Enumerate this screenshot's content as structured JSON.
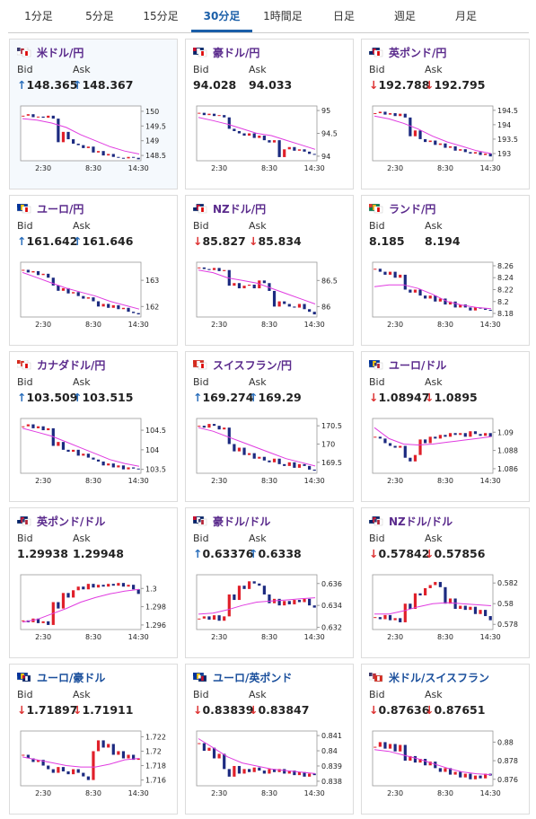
{
  "tabs": [
    "1分足",
    "5分足",
    "15分足",
    "30分足",
    "1時間足",
    "日足",
    "週足",
    "月足"
  ],
  "active_tab": 3,
  "labels": {
    "bid": "Bid",
    "ask": "Ask"
  },
  "x_labels": [
    "2:30",
    "8:30",
    "14:30"
  ],
  "cards": [
    {
      "name": "米ドル/円",
      "flags": [
        "us",
        "jp"
      ],
      "bid": 148.365,
      "ask": 148.367,
      "trend": "up",
      "ylim": [
        148.32,
        150.18
      ],
      "yticks": [
        148.5,
        149,
        149.5,
        150
      ],
      "close": [
        149.85,
        149.9,
        149.8,
        149.82,
        149.78,
        149.85,
        149.75,
        148.95,
        149.3,
        149.05,
        148.9,
        148.85,
        148.75,
        148.8,
        148.6,
        148.65,
        148.5,
        148.55,
        148.45,
        148.42,
        148.4,
        148.45,
        148.42,
        148.37
      ],
      "ma": [
        149.75,
        149.7,
        149.6,
        149.45,
        149.2,
        149.0,
        148.8,
        148.65,
        148.55
      ]
    },
    {
      "name": "豪ドル/円",
      "flags": [
        "au",
        "jp"
      ],
      "bid": 94.028,
      "ask": 94.033,
      "ylim": [
        93.9,
        95.1
      ],
      "yticks": [
        94,
        94.5,
        95
      ],
      "close": [
        94.95,
        94.9,
        94.93,
        94.88,
        94.9,
        94.85,
        94.6,
        94.55,
        94.5,
        94.45,
        94.5,
        94.4,
        94.45,
        94.35,
        94.3,
        94.35,
        93.98,
        94.15,
        94.2,
        94.12,
        94.15,
        94.1,
        94.05,
        94.03
      ],
      "ma": [
        94.85,
        94.78,
        94.7,
        94.6,
        94.5,
        94.45,
        94.35,
        94.25,
        94.15
      ]
    },
    {
      "name": "英ポンド/円",
      "flags": [
        "uk",
        "jp"
      ],
      "bid": 192.788,
      "ask": 192.795,
      "trend": "down",
      "ylim": [
        192.75,
        194.65
      ],
      "yticks": [
        193,
        193.5,
        194,
        194.5
      ],
      "close": [
        194.4,
        194.45,
        194.35,
        194.4,
        194.3,
        194.38,
        194.25,
        193.6,
        193.8,
        193.5,
        193.4,
        193.45,
        193.3,
        193.35,
        193.2,
        193.25,
        193.1,
        193.15,
        193.05,
        193.0,
        193.05,
        192.95,
        193.0,
        192.9
      ],
      "ma": [
        194.3,
        194.2,
        194.05,
        193.85,
        193.6,
        193.4,
        193.25,
        193.1,
        193.0
      ]
    },
    {
      "name": "ユーロ/円",
      "flags": [
        "eu",
        "jp"
      ],
      "bid": 161.642,
      "ask": 161.646,
      "trend": "up",
      "ylim": [
        161.6,
        163.69
      ],
      "yticks": [
        162,
        163
      ],
      "close": [
        163.4,
        163.3,
        163.35,
        163.2,
        163.25,
        163.1,
        162.8,
        162.6,
        162.7,
        162.5,
        162.55,
        162.4,
        162.3,
        162.35,
        162.2,
        162.0,
        162.1,
        161.95,
        162.05,
        161.9,
        161.95,
        161.8,
        161.75,
        161.7
      ],
      "ma": [
        163.3,
        163.1,
        162.9,
        162.7,
        162.55,
        162.4,
        162.2,
        162.05,
        161.9
      ]
    },
    {
      "name": "NZドル/円",
      "flags": [
        "nz",
        "jp"
      ],
      "bid": 85.827,
      "ask": 85.834,
      "trend": "down",
      "ylim": [
        85.8,
        86.85
      ],
      "yticks": [
        86,
        86.5
      ],
      "close": [
        86.75,
        86.72,
        86.7,
        86.74,
        86.68,
        86.7,
        86.4,
        86.45,
        86.35,
        86.4,
        86.42,
        86.35,
        86.5,
        86.45,
        86.3,
        86.0,
        86.1,
        86.05,
        86.0,
        85.98,
        86.05,
        85.95,
        85.9,
        85.85
      ],
      "ma": [
        86.7,
        86.65,
        86.55,
        86.5,
        86.45,
        86.35,
        86.25,
        86.15,
        86.05
      ]
    },
    {
      "name": "ランド/円",
      "flags": [
        "za",
        "jp"
      ],
      "bid": 8.185,
      "ask": 8.194,
      "ylim": [
        8.174,
        8.266
      ],
      "yticks": [
        8.18,
        8.2,
        8.22,
        8.24,
        8.26
      ],
      "close": [
        8.255,
        8.25,
        8.245,
        8.25,
        8.24,
        8.245,
        8.22,
        8.215,
        8.22,
        8.21,
        8.205,
        8.21,
        8.2,
        8.205,
        8.195,
        8.2,
        8.19,
        8.195,
        8.19,
        8.185,
        8.19,
        8.188,
        8.186,
        8.185
      ],
      "ma": [
        8.225,
        8.228,
        8.228,
        8.222,
        8.212,
        8.2,
        8.194,
        8.19,
        8.188
      ]
    },
    {
      "name": "カナダドル/円",
      "flags": [
        "ca",
        "jp"
      ],
      "bid": 103.509,
      "ask": 103.515,
      "trend": "up",
      "ylim": [
        103.4,
        104.8
      ],
      "yticks": [
        103.5,
        104,
        104.5
      ],
      "close": [
        104.6,
        104.65,
        104.55,
        104.6,
        104.5,
        104.55,
        104.1,
        104.2,
        104.0,
        103.95,
        104.0,
        103.85,
        103.9,
        103.8,
        103.75,
        103.7,
        103.6,
        103.65,
        103.55,
        103.6,
        103.5,
        103.55,
        103.52,
        103.51
      ],
      "ma": [
        104.55,
        104.45,
        104.35,
        104.2,
        104.05,
        103.9,
        103.75,
        103.65,
        103.58
      ]
    },
    {
      "name": "スイスフラン/円",
      "flags": [
        "ch",
        "jp"
      ],
      "bid": 169.274,
      "ask": 169.29,
      "trend": "up",
      "ylim": [
        169.2,
        170.7
      ],
      "yticks": [
        169.5,
        170,
        170.5
      ],
      "close": [
        170.5,
        170.45,
        170.55,
        170.5,
        170.4,
        170.45,
        170.0,
        169.8,
        169.9,
        169.7,
        169.75,
        169.6,
        169.65,
        169.55,
        169.5,
        169.6,
        169.45,
        169.4,
        169.5,
        169.35,
        169.45,
        169.4,
        169.3,
        169.27
      ],
      "ma": [
        170.45,
        170.35,
        170.2,
        170.05,
        169.9,
        169.75,
        169.6,
        169.5,
        169.4
      ]
    },
    {
      "name": "ユーロ/ドル",
      "flags": [
        "eu",
        "us"
      ],
      "bid": 1.08947,
      "ask": 1.0895,
      "trend": "down",
      "ylim": [
        1.0855,
        1.0915
      ],
      "yticks": [
        1.086,
        1.088,
        1.09
      ],
      "close": [
        1.0895,
        1.0893,
        1.0888,
        1.0885,
        1.0883,
        1.0885,
        1.0872,
        1.0868,
        1.0875,
        1.0892,
        1.0888,
        1.0895,
        1.0893,
        1.0897,
        1.0895,
        1.0899,
        1.0897,
        1.0899,
        1.0895,
        1.0901,
        1.0898,
        1.0896,
        1.0899,
        1.0895
      ],
      "ma": [
        1.0905,
        1.0893,
        1.0887,
        1.0886,
        1.0887,
        1.0889,
        1.0891,
        1.0893,
        1.0895
      ]
    },
    {
      "name": "英ポンド/ドル",
      "flags": [
        "uk",
        "us"
      ],
      "bid": 1.29938,
      "ask": 1.29948,
      "ylim": [
        1.2955,
        1.3015
      ],
      "yticks": [
        1.296,
        1.298,
        1.3
      ],
      "close": [
        1.2965,
        1.2963,
        1.2967,
        1.2962,
        1.2964,
        1.296,
        1.2985,
        1.2978,
        1.2995,
        1.299,
        1.2998,
        1.3002,
        1.2999,
        1.3005,
        1.3001,
        1.3004,
        1.3002,
        1.3005,
        1.3003,
        1.3006,
        1.3002,
        1.3004,
        1.2999,
        1.2994
      ],
      "ma": [
        1.2963,
        1.2966,
        1.2972,
        1.2978,
        1.2985,
        1.299,
        1.2994,
        1.2997,
        1.2999
      ]
    },
    {
      "name": "豪ドル/ドル",
      "flags": [
        "au",
        "us"
      ],
      "bid": 0.63376,
      "ask": 0.6338,
      "trend": "up",
      "ylim": [
        0.6318,
        0.6368
      ],
      "yticks": [
        0.632,
        0.634,
        0.636
      ],
      "close": [
        0.6328,
        0.633,
        0.6327,
        0.6331,
        0.6326,
        0.633,
        0.635,
        0.6345,
        0.6358,
        0.6355,
        0.6362,
        0.636,
        0.6358,
        0.635,
        0.6342,
        0.6346,
        0.634,
        0.6344,
        0.6341,
        0.6345,
        0.6343,
        0.6346,
        0.634,
        0.6338
      ],
      "ma": [
        0.6332,
        0.6333,
        0.6336,
        0.634,
        0.6343,
        0.6344,
        0.6345,
        0.6346,
        0.6347
      ]
    },
    {
      "name": "NZドル/ドル",
      "flags": [
        "nz",
        "us"
      ],
      "bid": 0.57842,
      "ask": 0.57856,
      "trend": "down",
      "ylim": [
        0.5775,
        0.5828
      ],
      "yticks": [
        0.578,
        0.58,
        0.582
      ],
      "close": [
        0.5787,
        0.5785,
        0.5789,
        0.5784,
        0.5786,
        0.5782,
        0.58,
        0.5795,
        0.581,
        0.5808,
        0.5815,
        0.5818,
        0.5821,
        0.5816,
        0.58,
        0.5805,
        0.5795,
        0.5798,
        0.5794,
        0.5797,
        0.579,
        0.5794,
        0.5788,
        0.5784
      ],
      "ma": [
        0.579,
        0.579,
        0.5793,
        0.5797,
        0.58,
        0.5801,
        0.58,
        0.5799,
        0.5798
      ]
    },
    {
      "name": "ユーロ/豪ドル",
      "flags": [
        "eu",
        "au"
      ],
      "bid": 1.71897,
      "ask": 1.71911,
      "trend": "down",
      "ylim": [
        1.7152,
        1.7228
      ],
      "yticks": [
        1.716,
        1.718,
        1.72,
        1.722
      ],
      "close": [
        1.7195,
        1.719,
        1.7185,
        1.7188,
        1.718,
        1.7175,
        1.717,
        1.7178,
        1.7172,
        1.7168,
        1.7175,
        1.717,
        1.7165,
        1.716,
        1.72,
        1.7215,
        1.7205,
        1.721,
        1.7195,
        1.72,
        1.719,
        1.7195,
        1.7188,
        1.719
      ],
      "ma": [
        1.7192,
        1.7188,
        1.7184,
        1.718,
        1.7178,
        1.7178,
        1.7182,
        1.7188,
        1.719
      ]
    },
    {
      "name": "ユーロ/英ポンド",
      "flags": [
        "eu",
        "uk"
      ],
      "bid": 0.83839,
      "ask": 0.83847,
      "trend": "down",
      "ylim": [
        0.8377,
        0.8413
      ],
      "yticks": [
        0.838,
        0.839,
        0.84,
        0.841
      ],
      "close": [
        0.8405,
        0.84,
        0.8402,
        0.8395,
        0.8398,
        0.8388,
        0.8383,
        0.839,
        0.8385,
        0.8388,
        0.8386,
        0.8389,
        0.8387,
        0.8385,
        0.8388,
        0.8386,
        0.8388,
        0.8385,
        0.8387,
        0.8384,
        0.8386,
        0.8383,
        0.8385,
        0.8384
      ],
      "ma": [
        0.8408,
        0.8402,
        0.8396,
        0.8392,
        0.839,
        0.8388,
        0.8387,
        0.8386,
        0.8385
      ]
    },
    {
      "name": "米ドル/スイスフラン",
      "flags": [
        "us",
        "ch"
      ],
      "bid": 0.87636,
      "ask": 0.87651,
      "trend": "down",
      "ylim": [
        0.8753,
        0.8812
      ],
      "yticks": [
        0.876,
        0.878,
        0.88
      ],
      "close": [
        0.8795,
        0.88,
        0.8793,
        0.8798,
        0.879,
        0.8797,
        0.878,
        0.8785,
        0.8778,
        0.8782,
        0.8775,
        0.8779,
        0.8772,
        0.8768,
        0.8772,
        0.8765,
        0.8768,
        0.8762,
        0.8766,
        0.876,
        0.8764,
        0.8761,
        0.8766,
        0.8764
      ],
      "ma": [
        0.8792,
        0.879,
        0.8786,
        0.8782,
        0.8777,
        0.8772,
        0.8768,
        0.8766,
        0.8765
      ]
    }
  ]
}
